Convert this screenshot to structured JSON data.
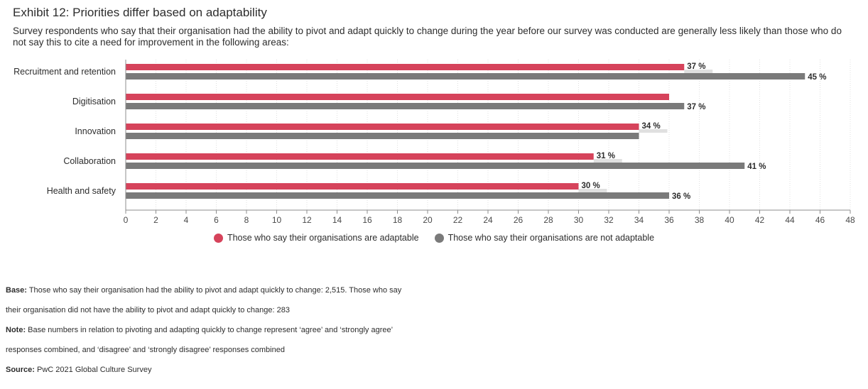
{
  "header": {
    "title": "Exhibit 12: Priorities differ based on adaptability",
    "subtitle": "Survey respondents who say that their organisation had the ability to pivot and adapt quickly to change during the year before our survey was conducted are generally less likely than those who do not say this to cite a need for improvement in the following areas:"
  },
  "chart_data": {
    "type": "bar",
    "orientation": "horizontal",
    "title": "Exhibit 12: Priorities differ based on adaptability",
    "categories": [
      "Recruitment and retention",
      "Digitisation",
      "Innovation",
      "Collaboration",
      "Health and safety"
    ],
    "series": [
      {
        "name": "Those who say their organisations are adaptable",
        "color": "#d6435b",
        "values": [
          37,
          36,
          34,
          31,
          30
        ],
        "labels": [
          "37 %",
          "",
          "34 %",
          "31 %",
          "30 %"
        ]
      },
      {
        "name": "Those who say their organisations are not adaptable",
        "color": "#7a7a7a",
        "values": [
          45,
          37,
          34,
          41,
          36
        ],
        "labels": [
          "45 %",
          "37 %",
          "",
          "41 %",
          "36 %"
        ]
      }
    ],
    "xlim": [
      0,
      48
    ],
    "xticks": [
      "0",
      "2",
      "4",
      "6",
      "8",
      "10",
      "12",
      "14",
      "16",
      "18",
      "20",
      "22",
      "24",
      "26",
      "28",
      "30",
      "32",
      "34",
      "36",
      "38",
      "40",
      "42",
      "44",
      "46",
      "48"
    ],
    "grid": true,
    "legend": "bottom-center"
  },
  "legend": {
    "items": [
      {
        "label": "Those who say their organisations are adaptable",
        "color": "#d6435b"
      },
      {
        "label": "Those who say their organisations are not adaptable",
        "color": "#7a7a7a"
      }
    ]
  },
  "notes": {
    "base_label": "Base:",
    "base_line1": "Those who say their organisation had the ability to pivot and adapt quickly to change: 2,515. Those who say",
    "base_line2": "their organisation did not have the ability to pivot and adapt quickly to change: 283",
    "note_label": "Note:",
    "note_line1": "Base numbers in relation to pivoting and adapting quickly to change represent ‘agree’ and ‘strongly agree’",
    "note_line2": "responses combined, and ‘disagree’ and ‘strongly disagree’ responses combined",
    "source_label": "Source:",
    "source_text": "PwC 2021 Global Culture Survey"
  }
}
